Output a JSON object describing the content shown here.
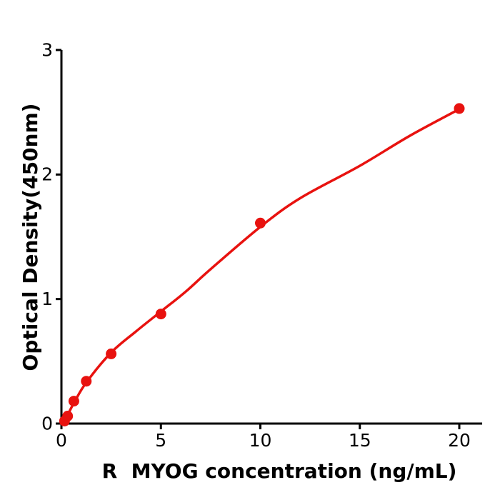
{
  "figure": {
    "background": "#ffffff"
  },
  "chart_data": {
    "type": "scatter",
    "title": "",
    "xlabel": "R  MYOG concentration (ng/mL)",
    "ylabel": "Optical Density(450nm)",
    "x_tick_values": [
      0,
      5,
      10,
      15,
      20
    ],
    "x_tick_labels": [
      "0",
      "5",
      "10",
      "15",
      "20"
    ],
    "y_tick_values": [
      0,
      1,
      2,
      3
    ],
    "y_tick_labels": [
      "0",
      "1",
      "2",
      "3"
    ],
    "xlim": [
      0,
      21.15
    ],
    "ylim": [
      0,
      3
    ],
    "grid": false,
    "point_color": "#e8120f",
    "curve_color": "#e8120f",
    "axis_color": "#000000",
    "points": [
      [
        0.156,
        0.02
      ],
      [
        0.313,
        0.06
      ],
      [
        0.625,
        0.18
      ],
      [
        1.25,
        0.34
      ],
      [
        2.5,
        0.56
      ],
      [
        5,
        0.88
      ],
      [
        10,
        1.61
      ],
      [
        20,
        2.53
      ]
    ],
    "curve_points": [
      [
        0,
        0.0
      ],
      [
        0.156,
        0.035
      ],
      [
        0.313,
        0.07
      ],
      [
        0.625,
        0.165
      ],
      [
        1.25,
        0.33
      ],
      [
        2.5,
        0.57
      ],
      [
        3.75,
        0.74
      ],
      [
        5,
        0.9
      ],
      [
        6.25,
        1.06
      ],
      [
        7.5,
        1.24
      ],
      [
        10,
        1.58
      ],
      [
        12,
        1.81
      ],
      [
        15,
        2.07
      ],
      [
        17.5,
        2.31
      ],
      [
        20,
        2.525
      ]
    ]
  }
}
